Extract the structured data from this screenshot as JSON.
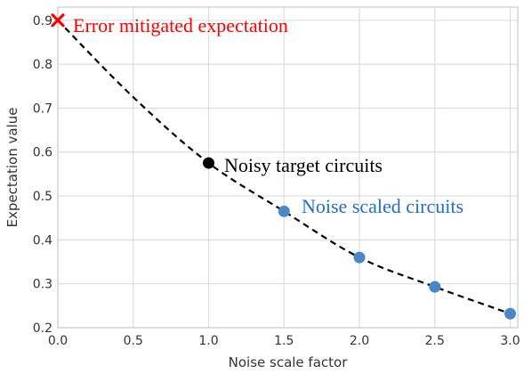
{
  "chart_data": {
    "type": "scatter",
    "xlabel": "Noise scale factor",
    "ylabel": "Expectation value",
    "xlim": [
      0.0,
      3.05
    ],
    "ylim": [
      0.2,
      0.93
    ],
    "xticks": [
      "0.0",
      "0.5",
      "1.0",
      "1.5",
      "2.0",
      "2.5",
      "3.0"
    ],
    "yticks": [
      "0.2",
      "0.3",
      "0.4",
      "0.5",
      "0.6",
      "0.7",
      "0.8",
      "0.9"
    ],
    "grid": true,
    "series": [
      {
        "name": "Error mitigated expectation",
        "marker": "x",
        "color": "#ff0000",
        "points": [
          {
            "x": 0.0,
            "y": 0.9
          }
        ]
      },
      {
        "name": "Noisy target circuits",
        "marker": "circle",
        "color": "#000000",
        "points": [
          {
            "x": 1.0,
            "y": 0.575
          }
        ]
      },
      {
        "name": "Noise scaled circuits",
        "marker": "circle",
        "color": "#4a86c8",
        "points": [
          {
            "x": 1.5,
            "y": 0.465
          },
          {
            "x": 2.0,
            "y": 0.36
          },
          {
            "x": 2.5,
            "y": 0.293
          },
          {
            "x": 3.0,
            "y": 0.232
          }
        ]
      }
    ],
    "fit_curve": {
      "style": "dashed",
      "color": "#000000",
      "points": [
        {
          "x": 0.0,
          "y": 0.9
        },
        {
          "x": 0.5,
          "y": 0.725
        },
        {
          "x": 1.0,
          "y": 0.575
        },
        {
          "x": 1.5,
          "y": 0.465
        },
        {
          "x": 2.0,
          "y": 0.36
        },
        {
          "x": 2.5,
          "y": 0.293
        },
        {
          "x": 3.0,
          "y": 0.232
        }
      ]
    },
    "annotations": [
      {
        "text": "Error mitigated expectation",
        "color": "#ff0000"
      },
      {
        "text": "Noisy target circuits",
        "color": "#000000"
      },
      {
        "text": "Noise scaled circuits",
        "color": "#1f6fbf"
      }
    ]
  }
}
